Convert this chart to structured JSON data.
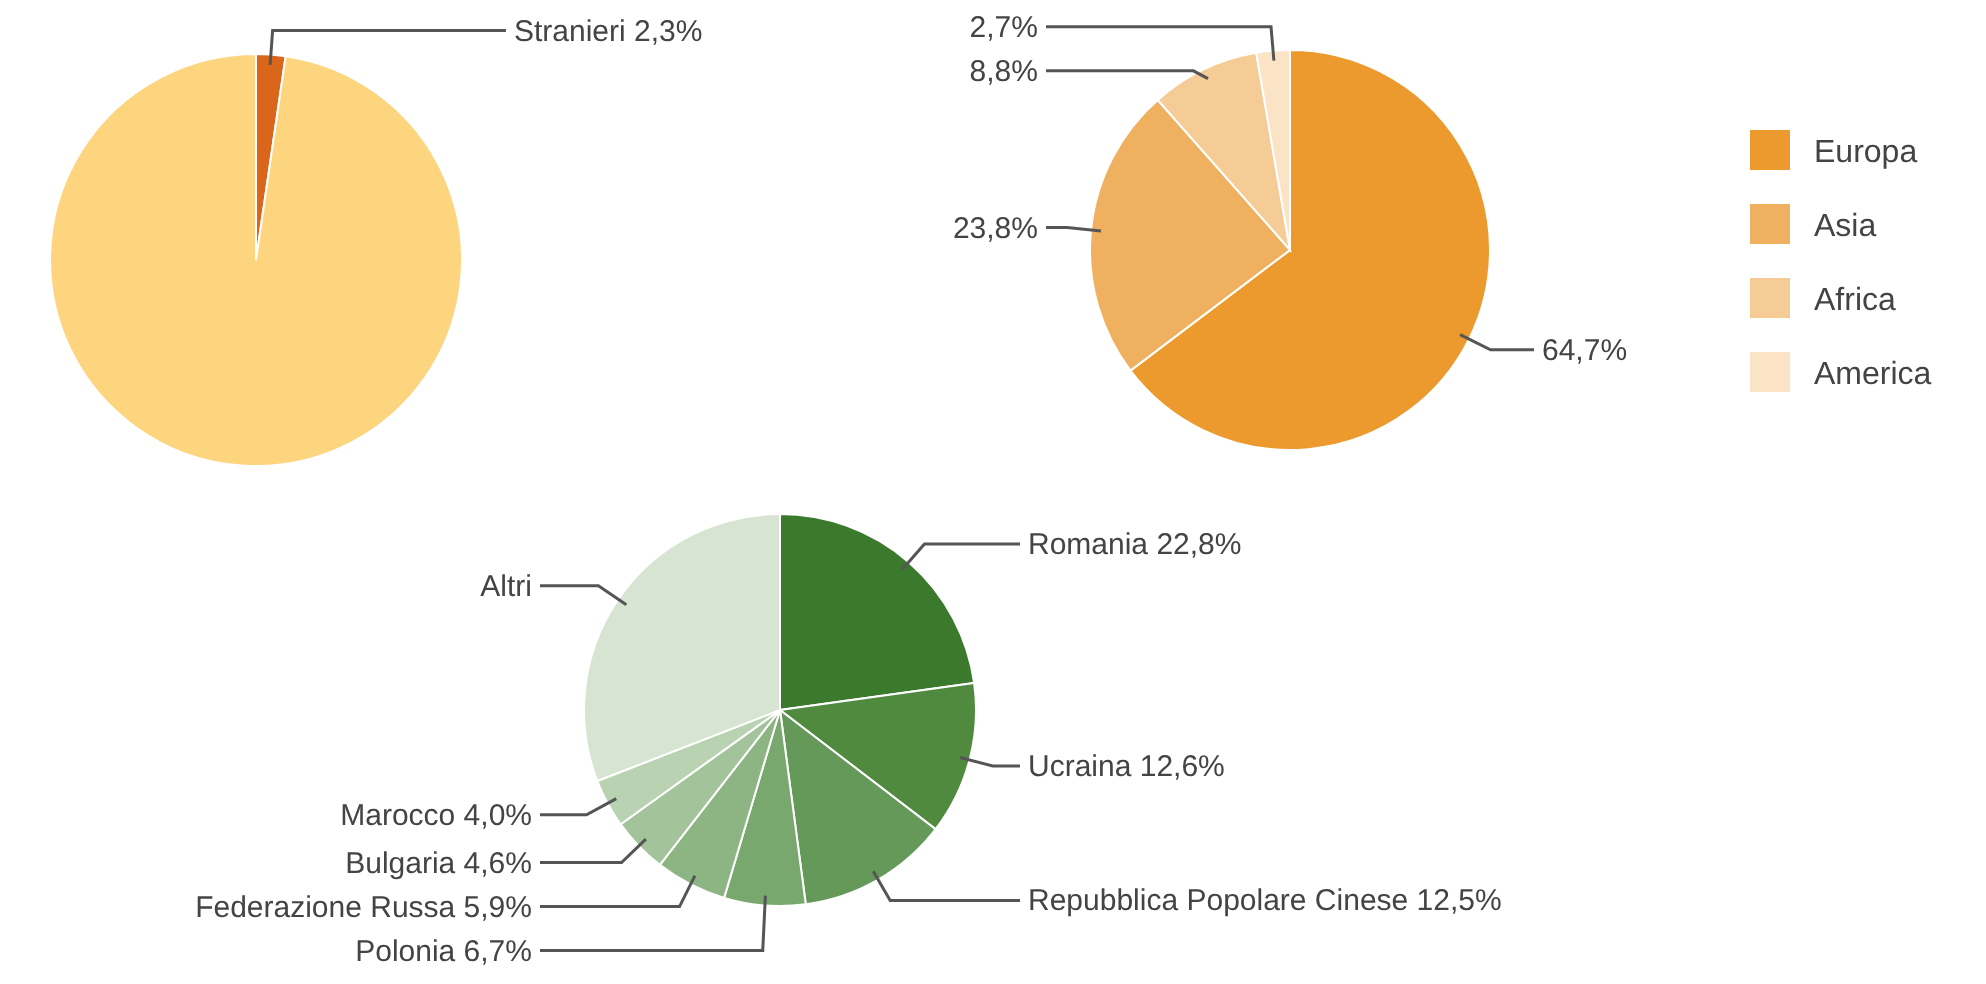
{
  "chart_data": [
    {
      "type": "pie",
      "categories": [
        "Stranieri",
        null
      ],
      "values": [
        2.3,
        97.7
      ],
      "value_labels": [
        "2,3%",
        null
      ],
      "colors": [
        "#d9661a",
        "#fdd57e"
      ]
    },
    {
      "type": "pie",
      "categories": [
        "Europa",
        "Asia",
        "Africa",
        "America"
      ],
      "values": [
        64.7,
        23.8,
        8.8,
        2.7
      ],
      "value_labels": [
        "64,7%",
        "23,8%",
        "8,8%",
        "2,7%"
      ],
      "colors": [
        "#ec9a2e",
        "#efb060",
        "#f5cb96",
        "#fbe3c6"
      ],
      "legend": "right"
    },
    {
      "type": "pie",
      "categories": [
        "Romania",
        "Ucraina",
        "Repubblica Popolare Cinese",
        "Polonia",
        "Federazione Russa",
        "Bulgaria",
        "Marocco",
        "Altri"
      ],
      "values": [
        22.8,
        12.6,
        12.5,
        6.7,
        5.9,
        4.6,
        4.0,
        30.9
      ],
      "value_labels": [
        "22,8%",
        "12,6%",
        "12,5%",
        "6,7%",
        "5,9%",
        "4,6%",
        "4,0%",
        null
      ],
      "colors": [
        "#3b7a2c",
        "#4f8a3f",
        "#64995a",
        "#79a86f",
        "#8db583",
        "#a3c39a",
        "#b9d2b2",
        "#d6e4d1"
      ]
    }
  ]
}
